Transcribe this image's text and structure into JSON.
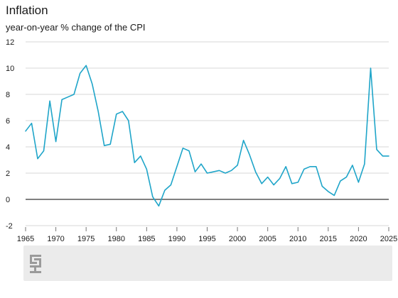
{
  "chart_data": {
    "type": "line",
    "title": "Inflation",
    "subtitle": "year-on-year % change of the CPI",
    "xlabel": "",
    "ylabel": "",
    "xlim": [
      1965,
      2025
    ],
    "ylim": [
      -2,
      12
    ],
    "y_ticks": [
      -2,
      0,
      2,
      4,
      6,
      8,
      10,
      12
    ],
    "x_ticks": [
      1965,
      1970,
      1975,
      1980,
      1985,
      1990,
      1995,
      2000,
      2005,
      2010,
      2015,
      2020,
      2025
    ],
    "grid": true,
    "line_color": "#1fa5c9",
    "zero_line_color": "#555555",
    "series": [
      {
        "x": [
          1965,
          1966,
          1967,
          1968,
          1969,
          1970,
          1971,
          1972,
          1973,
          1974,
          1975,
          1976,
          1977,
          1978,
          1979,
          1980,
          1981,
          1982,
          1983,
          1984,
          1985,
          1986,
          1987,
          1988,
          1989,
          1990,
          1991,
          1992,
          1993,
          1994,
          1995,
          1996,
          1997,
          1998,
          1999,
          2000,
          2001,
          2002,
          2003,
          2004,
          2005,
          2006,
          2007,
          2008,
          2009,
          2010,
          2011,
          2012,
          2013,
          2014,
          2015,
          2016,
          2017,
          2018,
          2019,
          2020,
          2021,
          2022,
          2023,
          2024,
          2025
        ],
        "values": [
          5.2,
          5.8,
          3.1,
          3.7,
          7.5,
          4.4,
          7.6,
          7.8,
          8.0,
          9.6,
          10.2,
          8.8,
          6.7,
          4.1,
          4.2,
          6.5,
          6.7,
          6.0,
          2.8,
          3.3,
          2.3,
          0.2,
          -0.5,
          0.7,
          1.1,
          2.5,
          3.9,
          3.7,
          2.1,
          2.7,
          2.0,
          2.1,
          2.2,
          2.0,
          2.2,
          2.6,
          4.5,
          3.4,
          2.1,
          1.2,
          1.7,
          1.1,
          1.6,
          2.5,
          1.2,
          1.3,
          2.3,
          2.5,
          2.5,
          1.0,
          0.6,
          0.3,
          1.4,
          1.7,
          2.6,
          1.3,
          2.7,
          10.0,
          3.8,
          3.3,
          3.3
        ]
      }
    ]
  },
  "logo": {
    "name": "logo-icon"
  }
}
